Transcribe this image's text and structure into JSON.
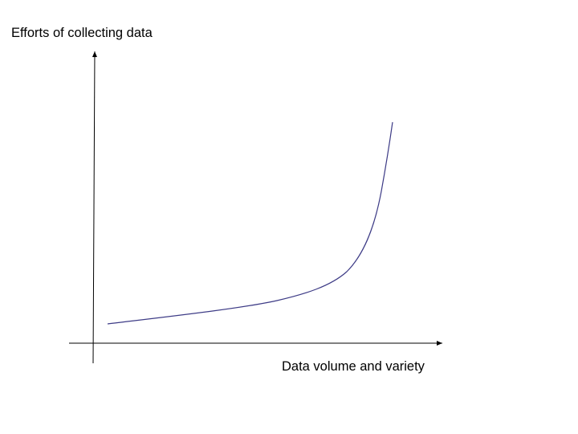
{
  "diagram": {
    "y_axis_label": "Efforts of collecting data",
    "x_axis_label": "Data volume and variety",
    "curve_shape": "exponential-growth",
    "colors": {
      "axes": "#000000",
      "curve": "#3d3b86",
      "background": "#ffffff"
    }
  }
}
